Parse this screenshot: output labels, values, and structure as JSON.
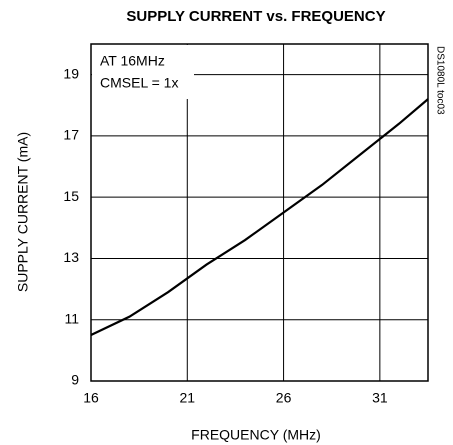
{
  "chart_data": {
    "type": "line",
    "title": "SUPPLY CURRENT vs. FREQUENCY",
    "x_label": "FREQUENCY (MHz)",
    "y_label": "SUPPLY CURRENT (mA)",
    "annotations": [
      "AT 16MHz",
      "CMSEL = 1x",
      "DS1080L toc03"
    ],
    "x": [
      16,
      18,
      20,
      22,
      24,
      26,
      28,
      30,
      32,
      33.5
    ],
    "series": [
      {
        "name": "Supply current",
        "color": "#000000",
        "values": [
          10.5,
          11.1,
          11.9,
          12.8,
          13.6,
          14.5,
          15.4,
          16.4,
          17.4,
          18.2
        ]
      }
    ],
    "xlim": [
      16,
      33.5
    ],
    "xticks": [
      16,
      21,
      26,
      31
    ],
    "ylim": [
      9,
      20
    ],
    "yticks": [
      9,
      11,
      13,
      15,
      17,
      19
    ],
    "grid": true
  }
}
